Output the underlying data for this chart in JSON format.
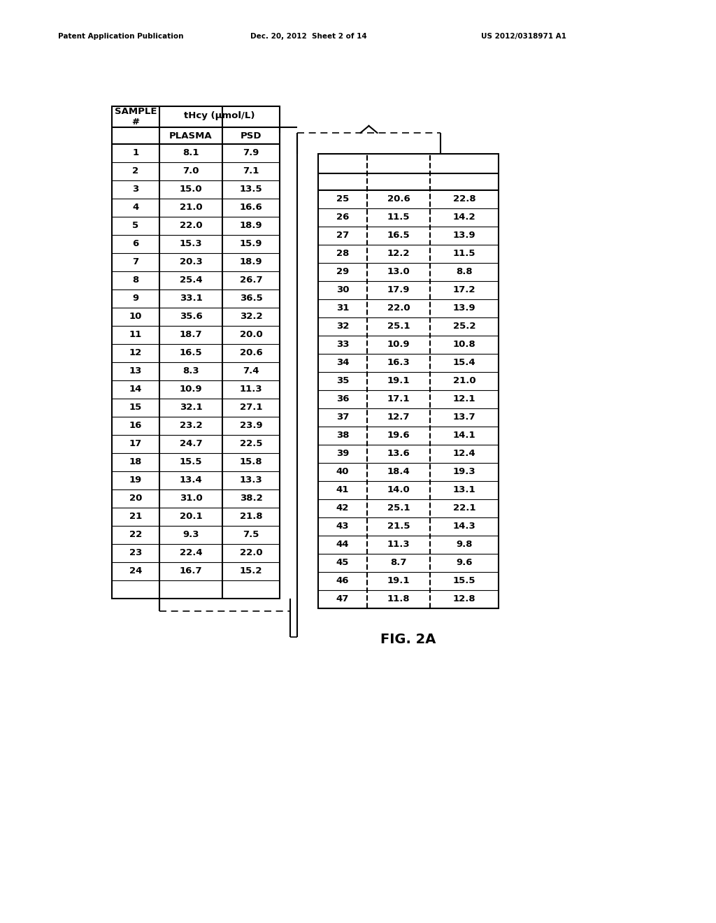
{
  "header_text": [
    "Patent Application Publication",
    "Dec. 20, 2012  Sheet 2 of 14",
    "US 2012/0318971 A1"
  ],
  "fig_label": "FIG. 2A",
  "table1_data": [
    [
      1,
      "8.1",
      "7.9"
    ],
    [
      2,
      "7.0",
      "7.1"
    ],
    [
      3,
      "15.0",
      "13.5"
    ],
    [
      4,
      "21.0",
      "16.6"
    ],
    [
      5,
      "22.0",
      "18.9"
    ],
    [
      6,
      "15.3",
      "15.9"
    ],
    [
      7,
      "20.3",
      "18.9"
    ],
    [
      8,
      "25.4",
      "26.7"
    ],
    [
      9,
      "33.1",
      "36.5"
    ],
    [
      10,
      "35.6",
      "32.2"
    ],
    [
      11,
      "18.7",
      "20.0"
    ],
    [
      12,
      "16.5",
      "20.6"
    ],
    [
      13,
      "8.3",
      "7.4"
    ],
    [
      14,
      "10.9",
      "11.3"
    ],
    [
      15,
      "32.1",
      "27.1"
    ],
    [
      16,
      "23.2",
      "23.9"
    ],
    [
      17,
      "24.7",
      "22.5"
    ],
    [
      18,
      "15.5",
      "15.8"
    ],
    [
      19,
      "13.4",
      "13.3"
    ],
    [
      20,
      "31.0",
      "38.2"
    ],
    [
      21,
      "20.1",
      "21.8"
    ],
    [
      22,
      "9.3",
      "7.5"
    ],
    [
      23,
      "22.4",
      "22.0"
    ],
    [
      24,
      "16.7",
      "15.2"
    ]
  ],
  "table2_data": [
    [
      25,
      "20.6",
      "22.8"
    ],
    [
      26,
      "11.5",
      "14.2"
    ],
    [
      27,
      "16.5",
      "13.9"
    ],
    [
      28,
      "12.2",
      "11.5"
    ],
    [
      29,
      "13.0",
      "8.8"
    ],
    [
      30,
      "17.9",
      "17.2"
    ],
    [
      31,
      "22.0",
      "13.9"
    ],
    [
      32,
      "25.1",
      "25.2"
    ],
    [
      33,
      "10.9",
      "10.8"
    ],
    [
      34,
      "16.3",
      "15.4"
    ],
    [
      35,
      "19.1",
      "21.0"
    ],
    [
      36,
      "17.1",
      "12.1"
    ],
    [
      37,
      "12.7",
      "13.7"
    ],
    [
      38,
      "19.6",
      "14.1"
    ],
    [
      39,
      "13.6",
      "12.4"
    ],
    [
      40,
      "18.4",
      "19.3"
    ],
    [
      41,
      "14.0",
      "13.1"
    ],
    [
      42,
      "25.1",
      "22.1"
    ],
    [
      43,
      "21.5",
      "14.3"
    ],
    [
      44,
      "11.3",
      "9.8"
    ],
    [
      45,
      "8.7",
      "9.6"
    ],
    [
      46,
      "19.1",
      "15.5"
    ],
    [
      47,
      "11.8",
      "12.8"
    ]
  ],
  "bg_color": "#ffffff",
  "text_color": "#000000",
  "border_color": "#000000"
}
